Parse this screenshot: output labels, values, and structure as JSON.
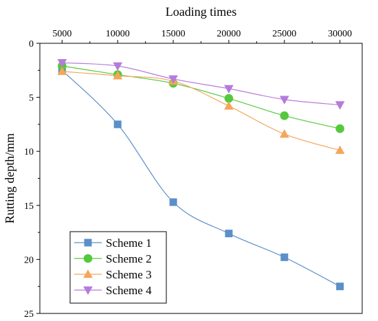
{
  "chart_data": {
    "type": "line",
    "xlabel": "Loading times",
    "ylabel": "Rutting depth/mm",
    "x": [
      5000,
      10000,
      15000,
      20000,
      25000,
      30000
    ],
    "x_tick_labels": [
      "5000",
      "10000",
      "15000",
      "20000",
      "25000",
      "30000"
    ],
    "y_tick_labels": [
      "0",
      "5",
      "10",
      "15",
      "20",
      "25"
    ],
    "xlim": [
      3000,
      32000
    ],
    "ylim": [
      0,
      25
    ],
    "y_inverted": true,
    "x_axis_position": "top",
    "grid": false,
    "legend_position": "bottom-left",
    "series": [
      {
        "name": "Scheme 1",
        "color": "#5b8fc9",
        "marker": "square",
        "values": [
          2.5,
          7.5,
          14.7,
          17.6,
          19.8,
          22.5
        ]
      },
      {
        "name": "Scheme 2",
        "color": "#55c93c",
        "marker": "circle",
        "values": [
          2.1,
          2.9,
          3.7,
          5.1,
          6.7,
          7.9
        ]
      },
      {
        "name": "Scheme 3",
        "color": "#f4a65a",
        "marker": "triangle-up",
        "values": [
          2.6,
          3.0,
          3.5,
          5.8,
          8.4,
          9.9
        ]
      },
      {
        "name": "Scheme 4",
        "color": "#b57bdc",
        "marker": "triangle-down",
        "values": [
          1.8,
          2.1,
          3.3,
          4.2,
          5.2,
          5.7
        ]
      }
    ]
  }
}
